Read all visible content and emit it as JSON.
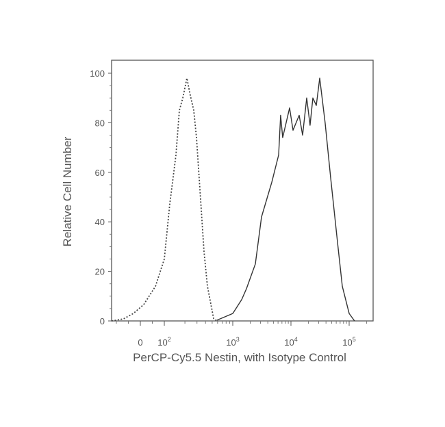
{
  "chart_data": {
    "type": "line",
    "title": "",
    "xlabel": "PerCP-Cy5.5 Nestin, with Isotype Control",
    "ylabel": "Relative Cell Number",
    "x_scale": "biexponential",
    "xlim": [
      -120,
      260000
    ],
    "ylim": [
      0,
      105
    ],
    "x_ticks": [
      {
        "value": 0,
        "label": "0",
        "exp": ""
      },
      {
        "value": 100,
        "label": "10",
        "exp": "2"
      },
      {
        "value": 1000,
        "label": "10",
        "exp": "3"
      },
      {
        "value": 10000,
        "label": "10",
        "exp": "4"
      },
      {
        "value": 100000,
        "label": "10",
        "exp": "5"
      }
    ],
    "y_ticks": [
      0,
      20,
      40,
      60,
      80,
      100
    ],
    "grid": false,
    "series": [
      {
        "style": "dashed",
        "color": "#444444",
        "x": [
          -120,
          -71,
          -29,
          14,
          63,
          100,
          120,
          148,
          166,
          186,
          214,
          240,
          269,
          295,
          339,
          380,
          427,
          525,
          589
        ],
        "y": [
          0,
          0.8,
          3,
          6.6,
          14,
          25,
          47,
          67,
          85,
          90,
          98,
          91,
          85,
          74,
          49,
          28,
          14,
          1,
          0
        ]
      },
      {
        "style": "solid",
        "color": "#333333",
        "x": [
          589,
          1000,
          1422,
          1719,
          2445,
          3118,
          4684,
          6135,
          6651,
          7209,
          9472,
          10846,
          13853,
          15848,
          18632,
          21320,
          23781,
          27224,
          31164,
          38658,
          47947,
          62980,
          76170,
          100000,
          124000
        ],
        "y": [
          0.3,
          3,
          8.6,
          13,
          23,
          42,
          56,
          67,
          83,
          74,
          86,
          77,
          83,
          75,
          90,
          79,
          90,
          87,
          98,
          80,
          58,
          32,
          14,
          3,
          0
        ]
      }
    ]
  }
}
